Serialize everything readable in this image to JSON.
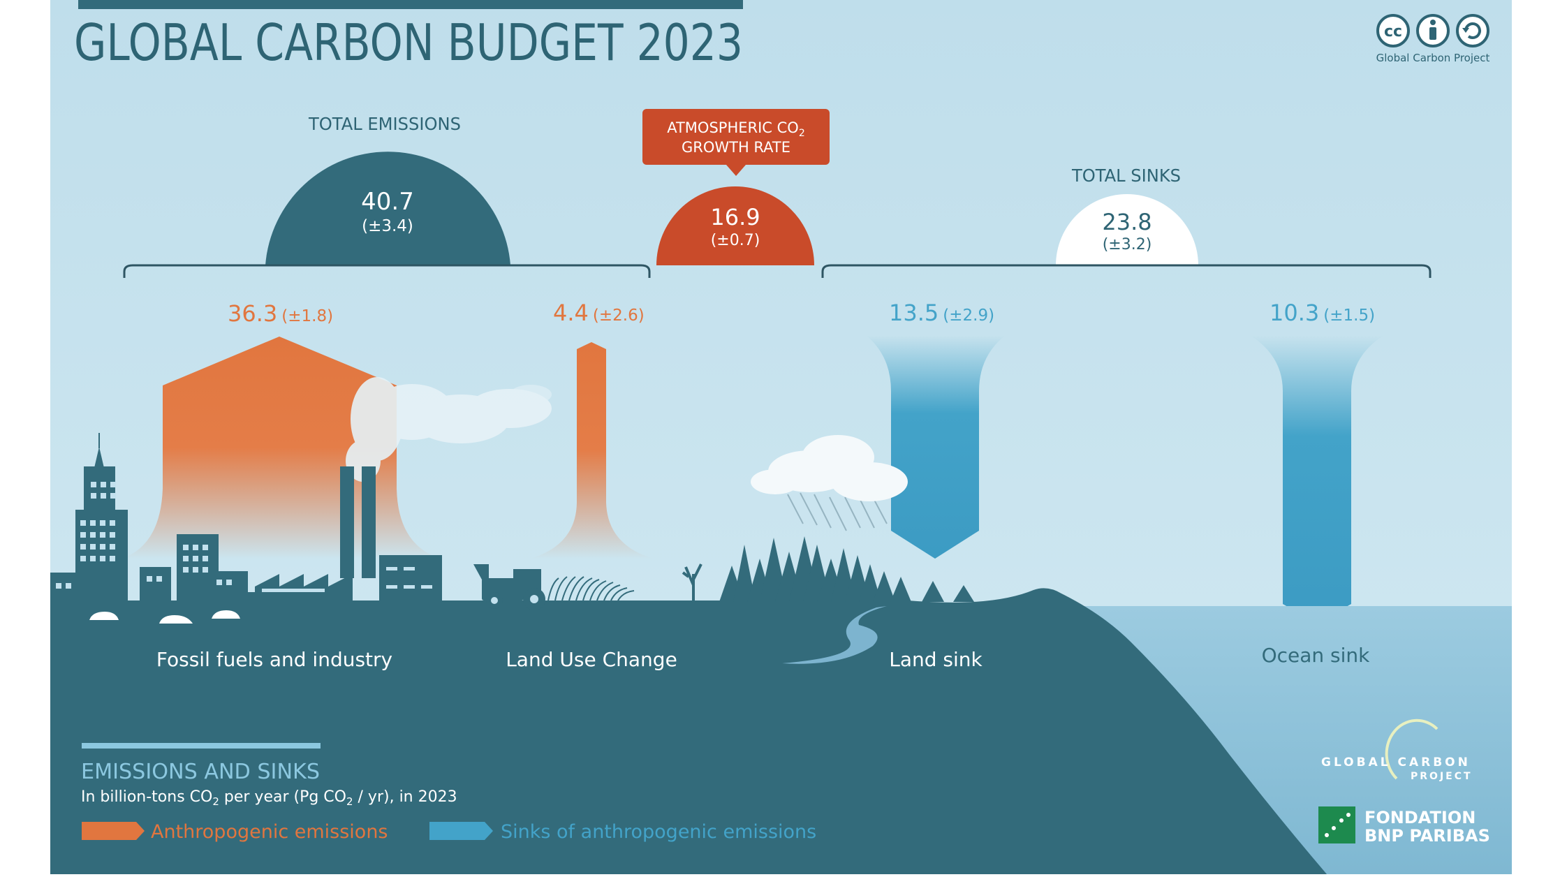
{
  "title": "GLOBAL CARBON BUDGET 2023",
  "license": {
    "icons": [
      "cc-icon",
      "attribution-icon",
      "share-alike-icon"
    ],
    "cc_text": "cc",
    "caption": "Global Carbon Project"
  },
  "total_emissions": {
    "label": "TOTAL EMISSIONS",
    "value": "40.7",
    "uncertainty": "(±3.4)"
  },
  "atmospheric": {
    "label_line1": "ATMOSPHERIC CO",
    "label_sub": "2",
    "label_line2": "GROWTH RATE",
    "value": "16.9",
    "uncertainty": "(±0.7)"
  },
  "total_sinks": {
    "label": "TOTAL SINKS",
    "value": "23.8",
    "uncertainty": "(±3.2)"
  },
  "flows": [
    {
      "id": "fossil",
      "value": "36.3",
      "uncertainty": "(±1.8)",
      "label": "Fossil fuels and industry",
      "kind": "emission"
    },
    {
      "id": "luc",
      "value": "4.4",
      "uncertainty": "(±2.6)",
      "label": "Land Use Change",
      "kind": "emission"
    },
    {
      "id": "land",
      "value": "13.5",
      "uncertainty": "(±2.9)",
      "label": "Land sink",
      "kind": "sink"
    },
    {
      "id": "ocean",
      "value": "10.3",
      "uncertainty": "(±1.5)",
      "label": "Ocean sink",
      "kind": "sink"
    }
  ],
  "legend": {
    "heading": "EMISSIONS AND SINKS",
    "units_prefix": "In billion-tons CO",
    "units_sub1": "2",
    "units_mid": " per year (Pg CO",
    "units_sub2": "2",
    "units_suffix": " / yr), in 2023",
    "emission_label": "Anthropogenic emissions",
    "sink_label": "Sinks of anthropogenic emissions"
  },
  "logos": {
    "gcp_line1": "GLOBAL  CARBON",
    "gcp_line2": "PROJECT",
    "bnp_line1": "FONDATION",
    "bnp_line2": "BNP PARIBAS"
  },
  "colors": {
    "sky": "#c3e1ee",
    "ground": "#336b7b",
    "emission": "#e1763f",
    "sink": "#43a3c9",
    "atmosphere": "#c94b2a",
    "sea": "#8cc2da",
    "title": "#2e6474"
  }
}
